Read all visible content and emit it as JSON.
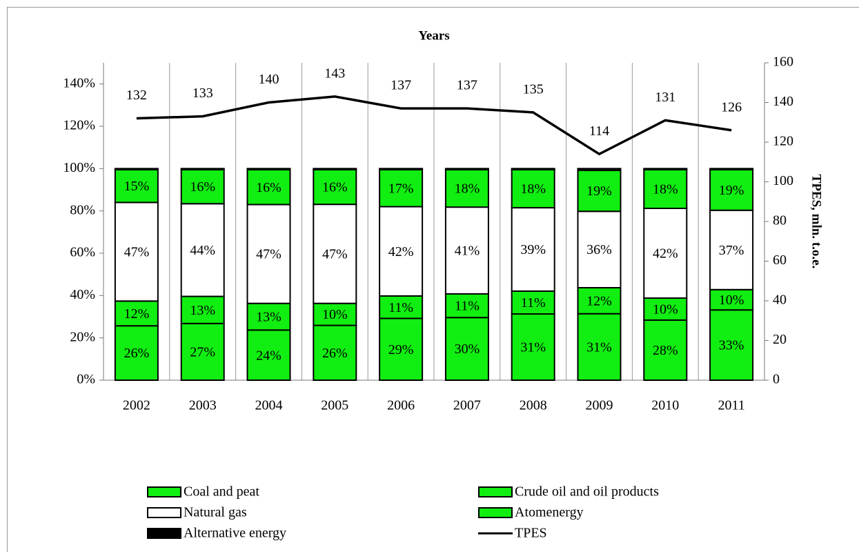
{
  "chart_data": {
    "type": "bar",
    "stacked": true,
    "title": "Years",
    "y2label": "TPES, mln. t.o.e.",
    "categories": [
      "2002",
      "2003",
      "2004",
      "2005",
      "2006",
      "2007",
      "2008",
      "2009",
      "2010",
      "2011"
    ],
    "ylim": [
      0,
      150
    ],
    "yticks": [
      {
        "value": 0,
        "label": "0%"
      },
      {
        "value": 20,
        "label": "20%"
      },
      {
        "value": 40,
        "label": "40%"
      },
      {
        "value": 60,
        "label": "60%"
      },
      {
        "value": 80,
        "label": "80%"
      },
      {
        "value": 100,
        "label": "100%"
      },
      {
        "value": 120,
        "label": "120%"
      },
      {
        "value": 140,
        "label": "140%"
      }
    ],
    "y2lim": [
      0,
      160
    ],
    "y2ticks": [
      0,
      20,
      40,
      60,
      80,
      100,
      120,
      140,
      160
    ],
    "series": [
      {
        "name": "Coal and peat",
        "color": "#11ee11",
        "values": [
          25.7,
          26.8,
          23.7,
          25.9,
          29.2,
          29.6,
          31.3,
          31.4,
          28.4,
          33.2
        ],
        "value_labels": [
          "26%",
          "27%",
          "24%",
          "26%",
          "29%",
          "30%",
          "31%",
          "31%",
          "28%",
          "33%"
        ]
      },
      {
        "name": "Crude oil and oil products",
        "color": "#11ee11",
        "values": [
          11.7,
          12.8,
          12.6,
          10.4,
          10.6,
          11.2,
          10.8,
          12.3,
          10.4,
          9.6
        ],
        "value_labels": [
          "12%",
          "13%",
          "13%",
          "10%",
          "11%",
          "11%",
          "11%",
          "12%",
          "10%",
          "10%"
        ]
      },
      {
        "name": "Natural gas",
        "color": "#ffffff",
        "values": [
          46.6,
          43.8,
          46.7,
          46.8,
          42.2,
          41.0,
          39.4,
          36.1,
          42.4,
          37.5
        ],
        "value_labels": [
          "47%",
          "44%",
          "47%",
          "47%",
          "42%",
          "41%",
          "39%",
          "36%",
          "42%",
          "37%"
        ]
      },
      {
        "name": "Atomenergy",
        "color": "#11ee11",
        "values": [
          15.5,
          16.1,
          16.5,
          16.4,
          17.5,
          17.7,
          18.0,
          19.4,
          18.3,
          19.2
        ],
        "value_labels": [
          "15%",
          "16%",
          "16%",
          "16%",
          "17%",
          "18%",
          "18%",
          "19%",
          "18%",
          "19%"
        ]
      },
      {
        "name": "Alternative energy",
        "color": "#000000",
        "values": [
          0.5,
          0.5,
          0.5,
          0.5,
          0.5,
          0.5,
          0.5,
          0.8,
          0.5,
          0.5
        ]
      },
      {
        "name": "TPES",
        "type": "line",
        "axis": "y2",
        "color": "#000000",
        "values": [
          132,
          133,
          140,
          143,
          137,
          137,
          135,
          114,
          131,
          126
        ]
      }
    ]
  }
}
